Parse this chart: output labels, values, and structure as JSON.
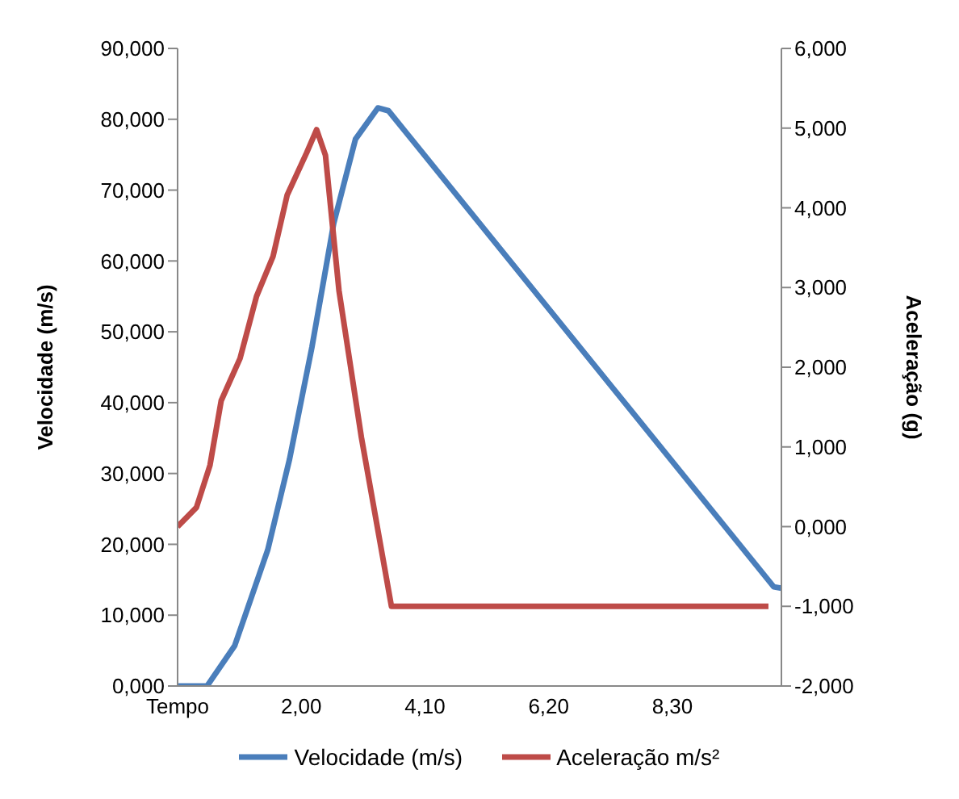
{
  "chart_data": {
    "type": "line",
    "ylabel": "Velocidade (m/s)",
    "y2label": "Aceleração (g)",
    "xlim": [
      -0.1,
      10.15
    ],
    "xticks": [
      {
        "value": -0.1,
        "label": "Tempo"
      },
      {
        "value": 2.0,
        "label": "2,00"
      },
      {
        "value": 4.1,
        "label": "4,10"
      },
      {
        "value": 6.2,
        "label": "6,20"
      },
      {
        "value": 8.3,
        "label": "8,30"
      }
    ],
    "ylim": [
      0,
      90
    ],
    "yticks": [
      {
        "value": 0,
        "label": "0,000"
      },
      {
        "value": 10,
        "label": "10,000"
      },
      {
        "value": 20,
        "label": "20,000"
      },
      {
        "value": 30,
        "label": "30,000"
      },
      {
        "value": 40,
        "label": "40,000"
      },
      {
        "value": 50,
        "label": "50,000"
      },
      {
        "value": 60,
        "label": "60,000"
      },
      {
        "value": 70,
        "label": "70,000"
      },
      {
        "value": 80,
        "label": "80,000"
      },
      {
        "value": 90,
        "label": "90,000"
      }
    ],
    "y2lim": [
      -2,
      6
    ],
    "y2ticks": [
      {
        "value": -2,
        "label": "-2,000"
      },
      {
        "value": -1,
        "label": "-1,000"
      },
      {
        "value": 0,
        "label": "0,000"
      },
      {
        "value": 1,
        "label": "1,000"
      },
      {
        "value": 2,
        "label": "2,000"
      },
      {
        "value": 3,
        "label": "3,000"
      },
      {
        "value": 4,
        "label": "4,000"
      },
      {
        "value": 5,
        "label": "5,000"
      },
      {
        "value": 6,
        "label": "6,000"
      }
    ],
    "grid": false,
    "legend": "bottom",
    "marker": "none",
    "line_style": "solid",
    "series": [
      {
        "name": "Velocidade (m/s)",
        "color": "#4a7ebb",
        "x": [
          -0.1,
          0.4,
          0.87,
          1.43,
          1.8,
          2.18,
          2.55,
          2.92,
          3.3,
          3.48,
          10.02,
          10.15
        ],
        "values": [
          0,
          0,
          5.7,
          19.2,
          32,
          47.8,
          65.3,
          77.2,
          81.6,
          81.2,
          14,
          13.8
        ]
      },
      {
        "name": "Aceleração m/s²",
        "color": "#be4b48",
        "axis": "y2",
        "x": [
          -0.1,
          0.22,
          0.45,
          0.64,
          0.96,
          1.24,
          1.52,
          1.76,
          2.09,
          2.26,
          2.41,
          2.64,
          3.02,
          3.53,
          9.93
        ],
        "values": [
          0,
          0.24,
          0.77,
          1.58,
          2.11,
          2.89,
          3.39,
          4.16,
          4.69,
          4.98,
          4.66,
          2.96,
          1.12,
          -1.0,
          -1.0
        ]
      }
    ]
  }
}
